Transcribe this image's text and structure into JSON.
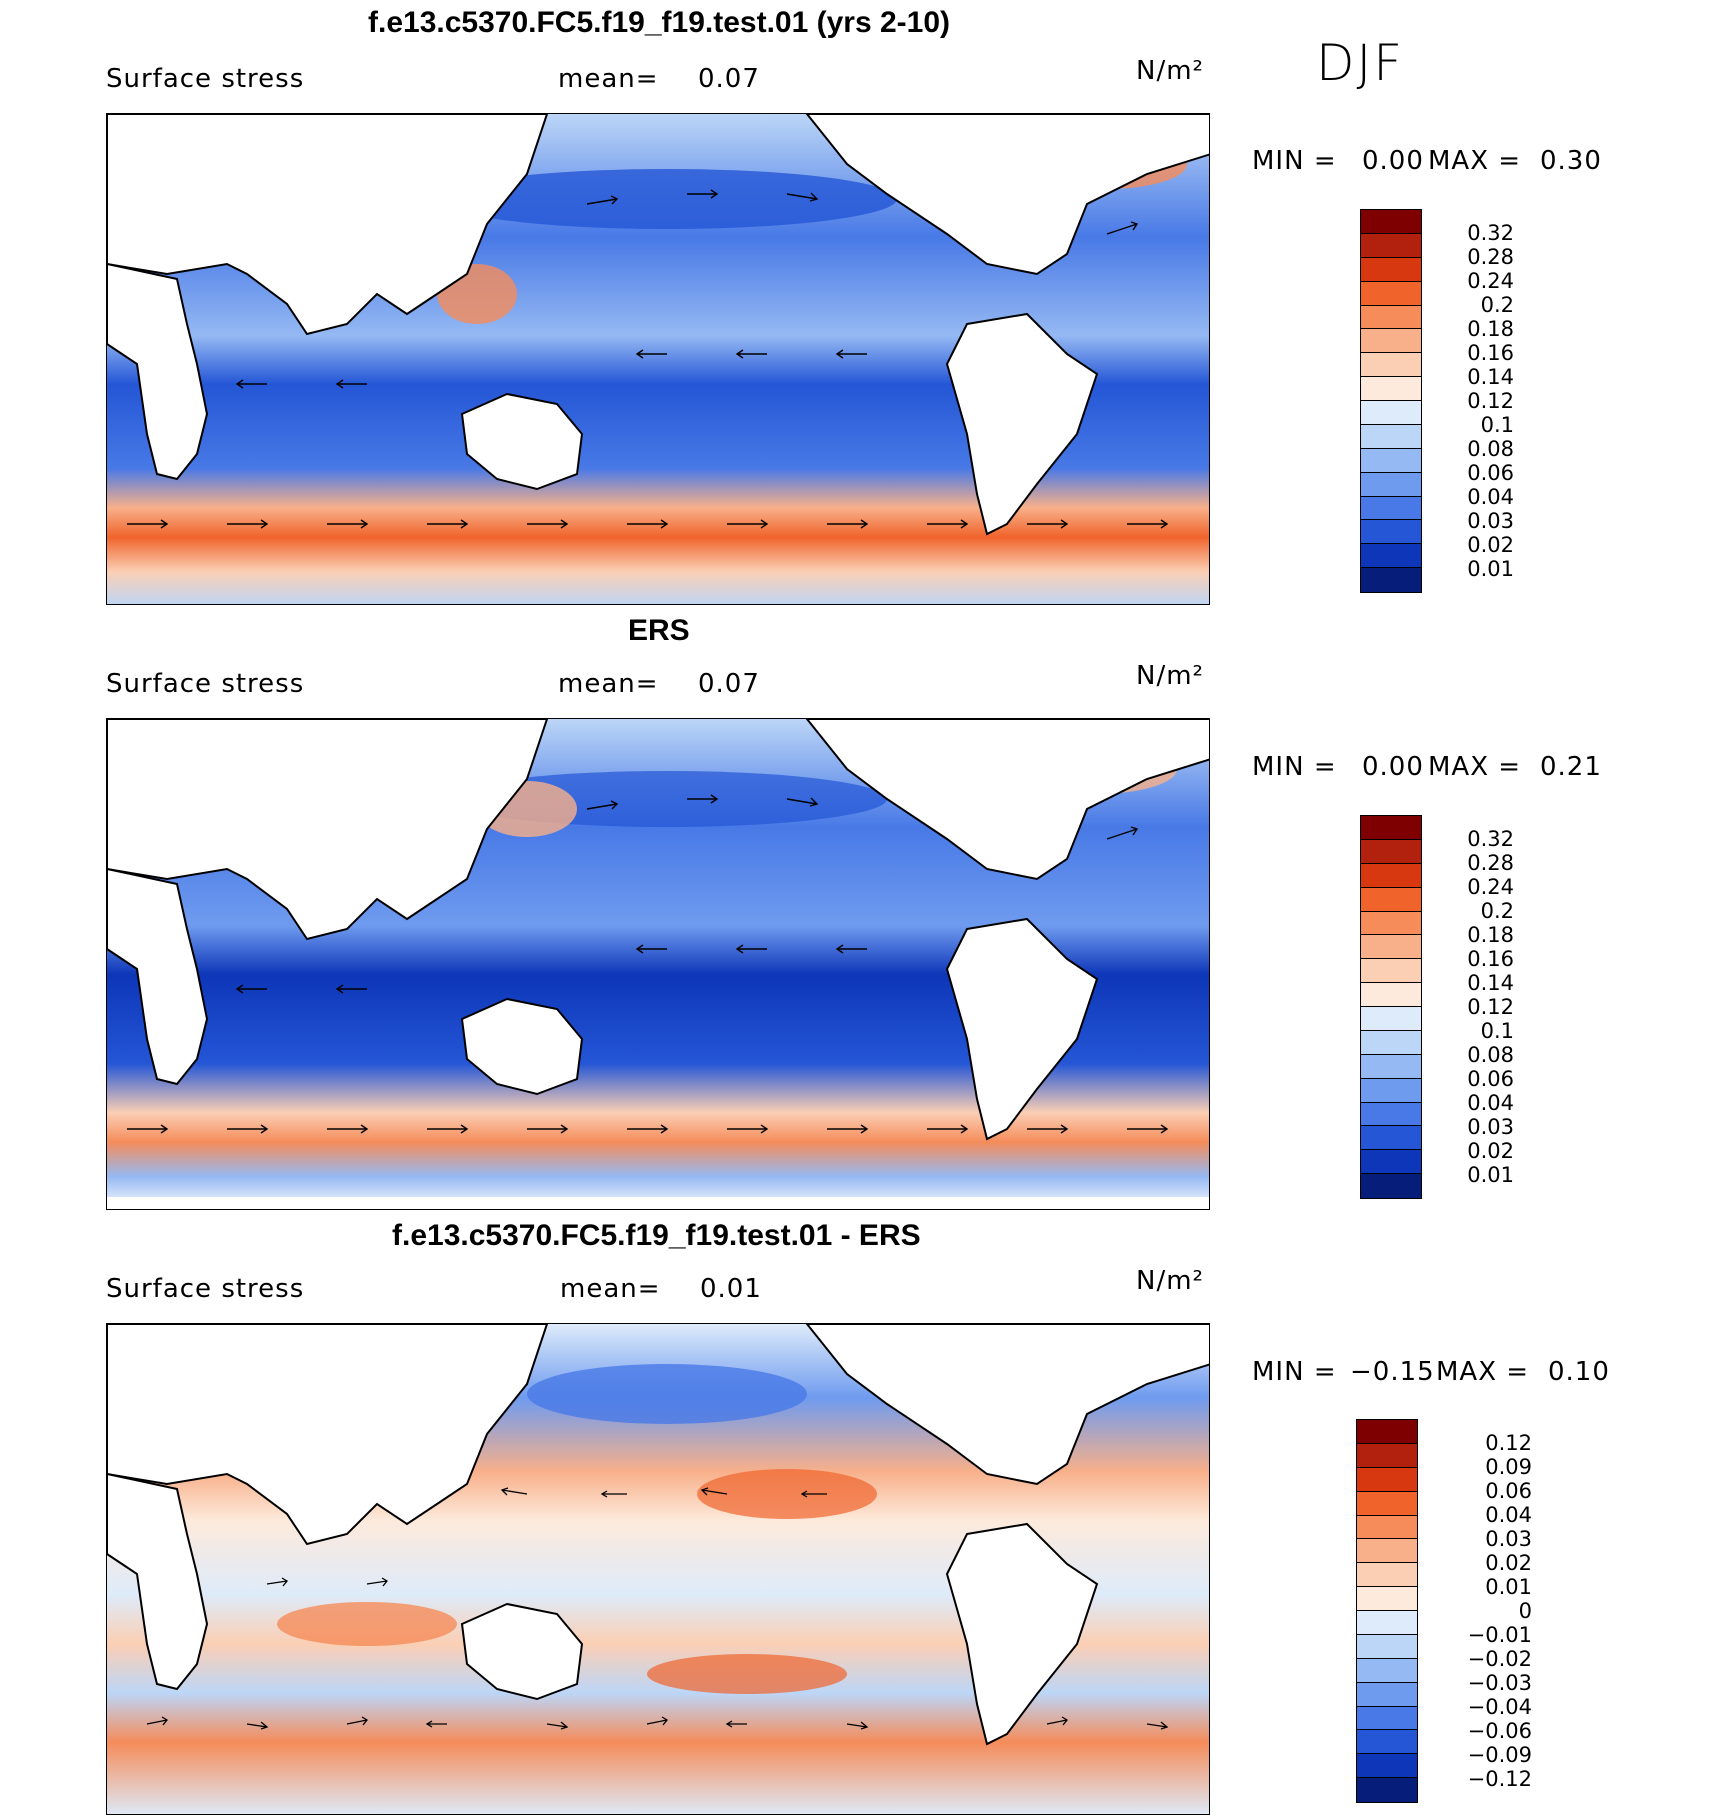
{
  "season": "DJF",
  "colors": {
    "ocean_low": "#1d4fd6",
    "ocean_mid": "#5b8ef0",
    "ocean_high": "#bcd6f7",
    "warm_band": "#f4a582",
    "land": "#ffffff"
  },
  "panels": [
    {
      "title": "f.e13.c5370.FC5.f19_f19.test.01 (yrs 2-10)",
      "variable": "Surface stress",
      "mean_label": "mean=",
      "mean_value": "0.07",
      "units": "N/m²",
      "min_label": "MIN =",
      "min_value": "0.00",
      "max_label": "MAX =",
      "max_value": "0.30",
      "colorbar": {
        "labels": [
          "0.32",
          "0.28",
          "0.24",
          "0.2",
          "0.18",
          "0.16",
          "0.14",
          "0.12",
          "0.1",
          "0.08",
          "0.06",
          "0.04",
          "0.03",
          "0.02",
          "0.01"
        ],
        "colors": [
          "#7f0000",
          "#b2200e",
          "#d8380f",
          "#f0642c",
          "#f58c5a",
          "#f8b08a",
          "#fbcfb4",
          "#fdeadc",
          "#deebfa",
          "#bcd6f7",
          "#95b9f3",
          "#6f9bef",
          "#4879e6",
          "#2456d6",
          "#0d36b8",
          "#061d7a"
        ]
      }
    },
    {
      "title": "ERS",
      "variable": "Surface stress",
      "mean_label": "mean=",
      "mean_value": "0.07",
      "units": "N/m²",
      "min_label": "MIN =",
      "min_value": "0.00",
      "max_label": "MAX =",
      "max_value": "0.21",
      "colorbar": {
        "labels": [
          "0.32",
          "0.28",
          "0.24",
          "0.2",
          "0.18",
          "0.16",
          "0.14",
          "0.12",
          "0.1",
          "0.08",
          "0.06",
          "0.04",
          "0.03",
          "0.02",
          "0.01"
        ],
        "colors": [
          "#7f0000",
          "#b2200e",
          "#d8380f",
          "#f0642c",
          "#f58c5a",
          "#f8b08a",
          "#fbcfb4",
          "#fdeadc",
          "#deebfa",
          "#bcd6f7",
          "#95b9f3",
          "#6f9bef",
          "#4879e6",
          "#2456d6",
          "#0d36b8",
          "#061d7a"
        ]
      }
    },
    {
      "title": "f.e13.c5370.FC5.f19_f19.test.01 - ERS",
      "variable": "Surface stress",
      "mean_label": "mean=",
      "mean_value": "0.01",
      "units": "N/m²",
      "min_label": "MIN =",
      "min_value": "−0.15",
      "max_label": "MAX =",
      "max_value": "0.10",
      "colorbar": {
        "labels": [
          "0.12",
          "0.09",
          "0.06",
          "0.04",
          "0.03",
          "0.02",
          "0.01",
          "0",
          "−0.01",
          "−0.02",
          "−0.03",
          "−0.04",
          "−0.06",
          "−0.09",
          "−0.12"
        ],
        "colors": [
          "#7f0000",
          "#b2200e",
          "#d8380f",
          "#f0642c",
          "#f58c5a",
          "#f8b08a",
          "#fbcfb4",
          "#fdeadc",
          "#deebfa",
          "#bcd6f7",
          "#95b9f3",
          "#6f9bef",
          "#4879e6",
          "#2456d6",
          "#0d36b8",
          "#061d7a"
        ]
      }
    }
  ]
}
